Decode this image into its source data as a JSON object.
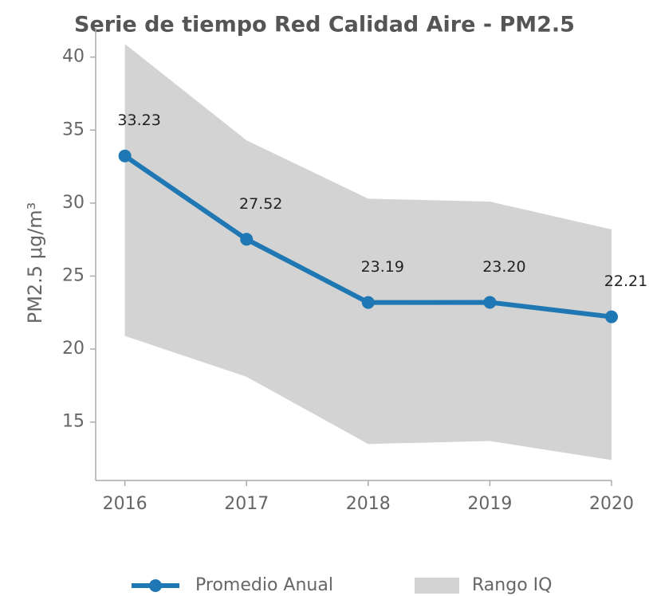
{
  "chart_data": {
    "type": "line",
    "title": "Serie de tiempo Red Calidad Aire - PM2.5",
    "y_label": "PM2.5 μg/m³",
    "x": [
      2016,
      2017,
      2018,
      2019,
      2020
    ],
    "xlim": [
      2015.76,
      2020
    ],
    "xticks": [
      2016,
      2017,
      2018,
      2019,
      2020
    ],
    "ylim": [
      11,
      42
    ],
    "yticks": [
      15,
      20,
      25,
      30,
      35,
      40
    ],
    "series": [
      {
        "name": "Promedio Anual",
        "color": "#1f77b4",
        "values": [
          33.23,
          27.52,
          23.19,
          23.2,
          22.21
        ],
        "value_labels": [
          "33.23",
          "27.52",
          "23.19",
          "23.20",
          "22.21"
        ]
      }
    ],
    "band": {
      "name": "Rango IQ",
      "color": "#d3d3d3",
      "upper": [
        40.9,
        34.3,
        30.3,
        30.1,
        28.2
      ],
      "lower": [
        20.9,
        18.1,
        13.5,
        13.7,
        12.4
      ]
    },
    "legend": "bottom"
  }
}
